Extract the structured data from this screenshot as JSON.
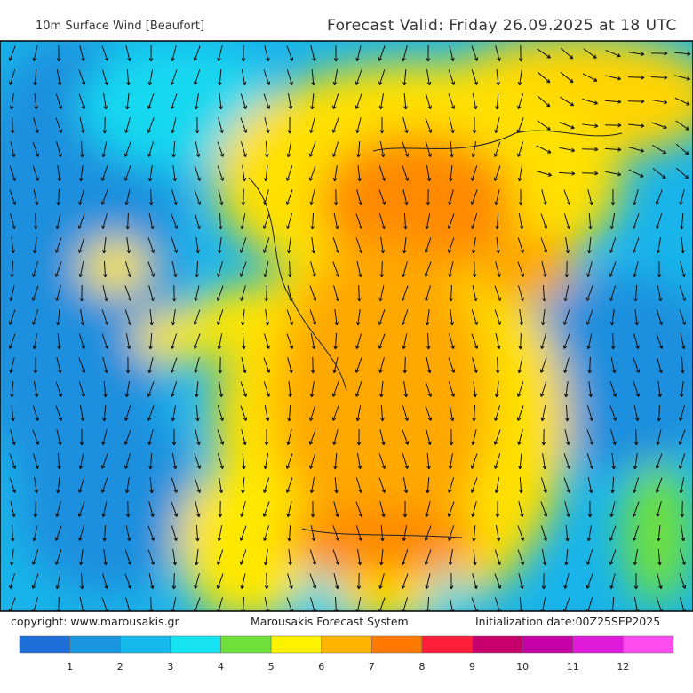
{
  "header": {
    "title": "10m Surface Wind [Beaufort]",
    "valid": "Forecast Valid:  Friday 26.09.2025 at 18 UTC"
  },
  "footer": {
    "copyright": "copyright: www.marousakis.gr",
    "system": "Marousakis Forecast System",
    "init": "Initialization date:00Z25SEP2025"
  },
  "legend": {
    "labels": [
      1,
      2,
      3,
      4,
      5,
      6,
      7,
      8,
      9,
      10,
      11,
      12
    ],
    "colors": [
      "#1f6fd8",
      "#1a95df",
      "#15b9ec",
      "#16e4f2",
      "#6fe03c",
      "#fff200",
      "#ffb400",
      "#ff7b00",
      "#ff1f3a",
      "#c8006c",
      "#c800a8",
      "#df1ad8",
      "#ff4df0"
    ]
  }
}
